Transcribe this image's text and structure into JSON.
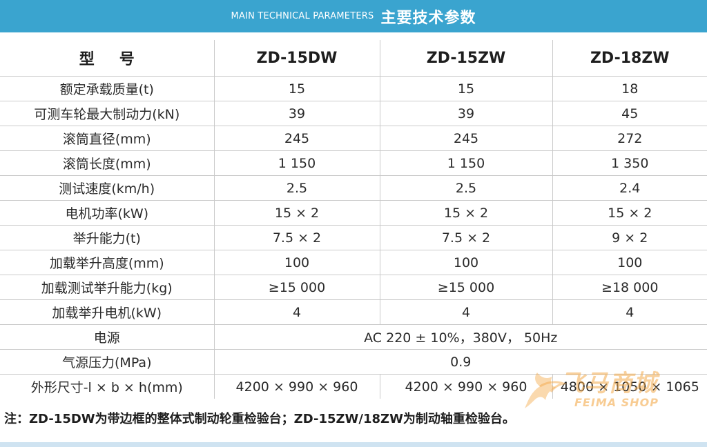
{
  "banner": {
    "title_en": "MAIN TECHNICAL PARAMETERS",
    "title_cn": "主要技术参数"
  },
  "table": {
    "header": {
      "label": "型号",
      "models": [
        "ZD-15DW",
        "ZD-15ZW",
        "ZD-18ZW"
      ]
    },
    "rows": [
      {
        "label": "额定承载质量(t)",
        "values": [
          "15",
          "15",
          "18"
        ]
      },
      {
        "label": "可测车轮最大制动力(kN)",
        "values": [
          "39",
          "39",
          "45"
        ]
      },
      {
        "label": "滚筒直径(mm)",
        "values": [
          "245",
          "245",
          "272"
        ]
      },
      {
        "label": "滚筒长度(mm)",
        "values": [
          "1 150",
          "1 150",
          "1 350"
        ]
      },
      {
        "label": "测试速度(km/h)",
        "values": [
          "2.5",
          "2.5",
          "2.4"
        ]
      },
      {
        "label": "电机功率(kW)",
        "values": [
          "15 × 2",
          "15 × 2",
          "15 × 2"
        ]
      },
      {
        "label": "举升能力(t)",
        "values": [
          "7.5 × 2",
          "7.5 × 2",
          "9 × 2"
        ]
      },
      {
        "label": "加载举升高度(mm)",
        "values": [
          "100",
          "100",
          "100"
        ]
      },
      {
        "label": "加载测试举升能力(kg)",
        "values": [
          "≥15 000",
          "≥15 000",
          "≥18 000"
        ]
      },
      {
        "label": "加载举升电机(kW)",
        "values": [
          "4",
          "4",
          "4"
        ]
      }
    ],
    "power_row": {
      "label": "电源",
      "value": "AC 220 ± 10%，380V， 50Hz"
    },
    "pressure_row": {
      "label": "气源压力(MPa)",
      "value": "0.9"
    },
    "dims_row": {
      "label": "外形尺寸-l × b × h(mm)",
      "values": [
        "4200 × 990 × 960",
        "4200 × 990 × 960",
        "4800 × 1050 × 1065"
      ]
    }
  },
  "note": "注：ZD-15DW为带边框的整体式制动轮重检验台；ZD-15ZW/18ZW为制动轴重检验台。",
  "watermark": {
    "text_cn": "飞马商城",
    "text_en": "FEIMA SHOP",
    "color": "#f3aa4b"
  },
  "colors": {
    "banner": "#3aa4cf",
    "grid": "#c9c9c9",
    "bottom_bar": "#cfe3f1"
  }
}
